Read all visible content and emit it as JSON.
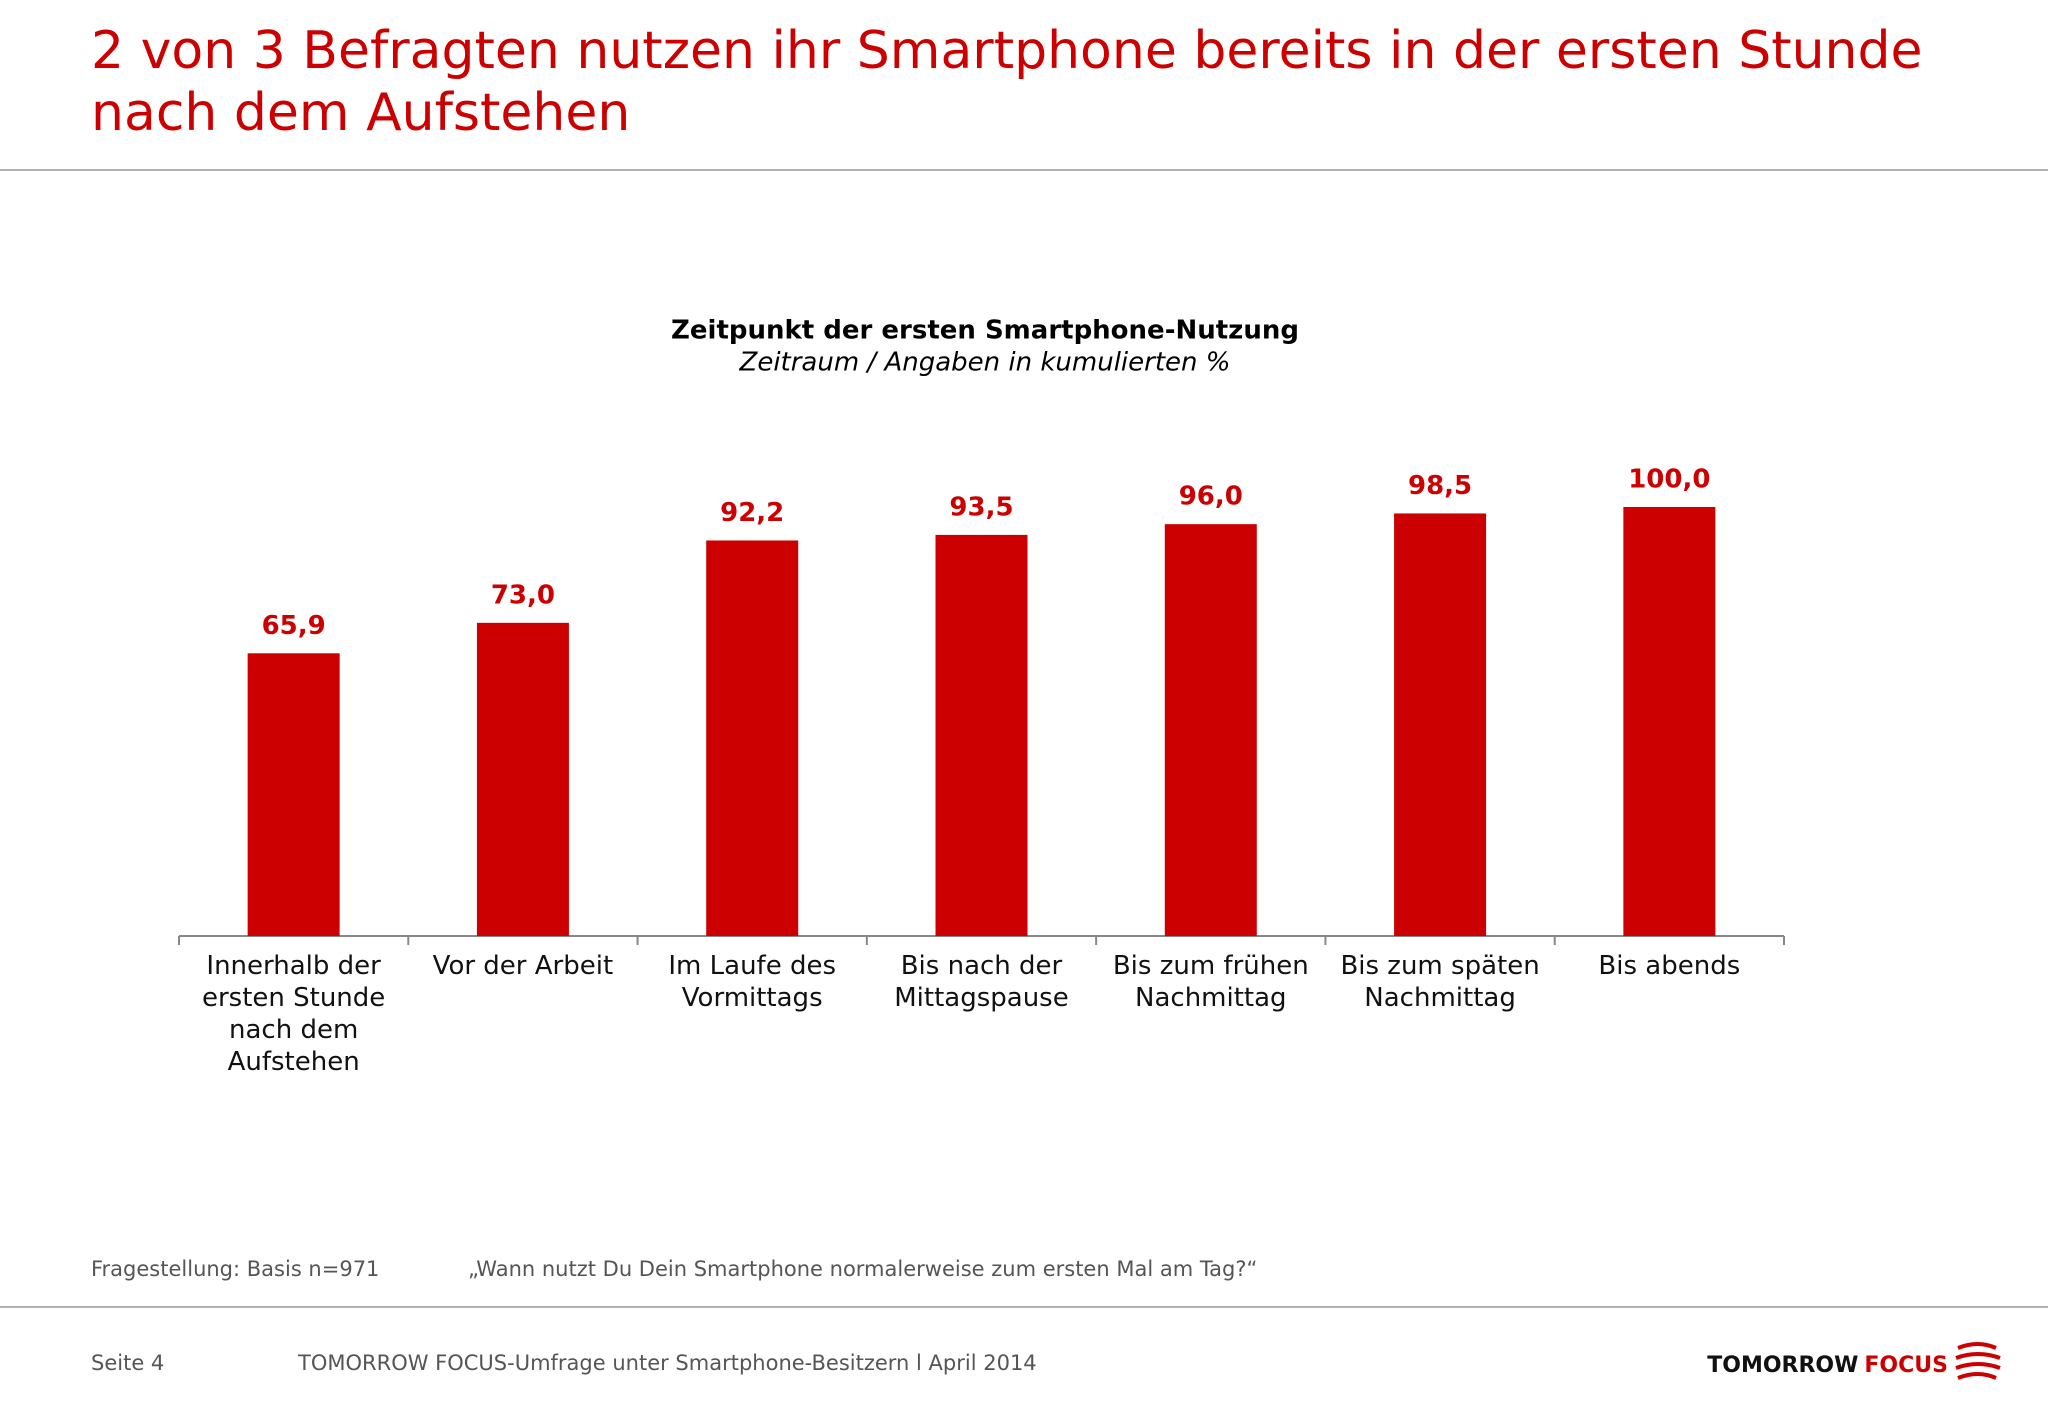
{
  "title": "2 von 3 Befragten nutzen ihr Smartphone bereits in der ersten Stunde nach dem Aufstehen",
  "chart_data": {
    "type": "bar",
    "title": "Zeitpunkt der ersten Smartphone-Nutzung",
    "subtitle": "Zeitraum / Angaben in kumulierten %",
    "categories": [
      "Innerhalb der ersten Stunde nach dem Aufstehen",
      "Vor der Arbeit",
      "Im Laufe des Vormittags",
      "Bis nach der Mittagspause",
      "Bis zum frühen Nachmittag",
      "Bis zum späten Nachmittag",
      "Bis abends"
    ],
    "values": [
      65.9,
      73.0,
      92.2,
      93.5,
      96.0,
      98.5,
      100.0
    ],
    "value_labels": [
      "65,9",
      "73,0",
      "92,2",
      "93,5",
      "96,0",
      "98,5",
      "100,0"
    ],
    "color": "#cc0000",
    "ylim": [
      0,
      100
    ]
  },
  "footer": {
    "question_label": "Fragestellung: Basis n=971",
    "question": "„Wann nutzt Du Dein Smartphone normalerweise zum ersten Mal am Tag?“",
    "page": "Seite 4",
    "source": "TOMORROW FOCUS-Umfrage unter Smartphone-Besitzern l April 2014",
    "logo_word1": "TOMORROW",
    "logo_word2": "FOCUS"
  }
}
